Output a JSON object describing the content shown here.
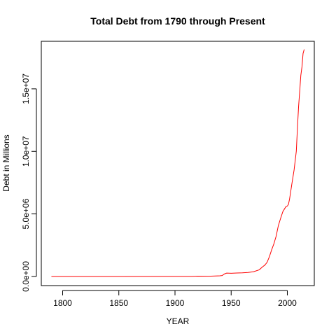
{
  "chart_data": {
    "type": "line",
    "title": "Total Debt from 1790 through Present",
    "xlabel": "YEAR",
    "ylabel": "Debt in Millions",
    "xlim": [
      1781,
      2024
    ],
    "ylim": [
      -730000,
      18800000
    ],
    "x_ticks": [
      1800,
      1850,
      1900,
      1950,
      2000
    ],
    "x_tick_labels": [
      "1800",
      "1850",
      "1900",
      "1950",
      "2000"
    ],
    "y_ticks": [
      0,
      5000000,
      10000000,
      15000000
    ],
    "y_tick_labels": [
      "0.0e+00",
      "5.0e+06",
      "1.0e+07",
      "1.5e+07"
    ],
    "grid": false,
    "legend": "none",
    "series": [
      {
        "color": "#ff0000",
        "x": [
          1790,
          1800,
          1850,
          1900,
          1915,
          1920,
          1930,
          1940,
          1942,
          1944,
          1946,
          1950,
          1955,
          1960,
          1965,
          1970,
          1975,
          1978,
          1980,
          1982,
          1984,
          1986,
          1988,
          1990,
          1992,
          1994,
          1996,
          1998,
          1999,
          2000,
          2001,
          2002,
          2004,
          2006,
          2008,
          2009,
          2010,
          2011,
          2012,
          2013,
          2014,
          2015
        ],
        "y": [
          75,
          83,
          63,
          2137,
          3058,
          25952,
          16185,
          50696,
          72422,
          201003,
          269422,
          257357,
          274374,
          290525,
          322318,
          380921,
          533189,
          776602,
          909041,
          1137345,
          1572266,
          2120501,
          2601104,
          3206290,
          4064620,
          4643307,
          5181465,
          5478189,
          5605523,
          5628700,
          5769881,
          6198401,
          7379052,
          8506974,
          10024724,
          11909829,
          13561623,
          14790340,
          16066241,
          16738183,
          17824071,
          18150618
        ]
      }
    ]
  }
}
